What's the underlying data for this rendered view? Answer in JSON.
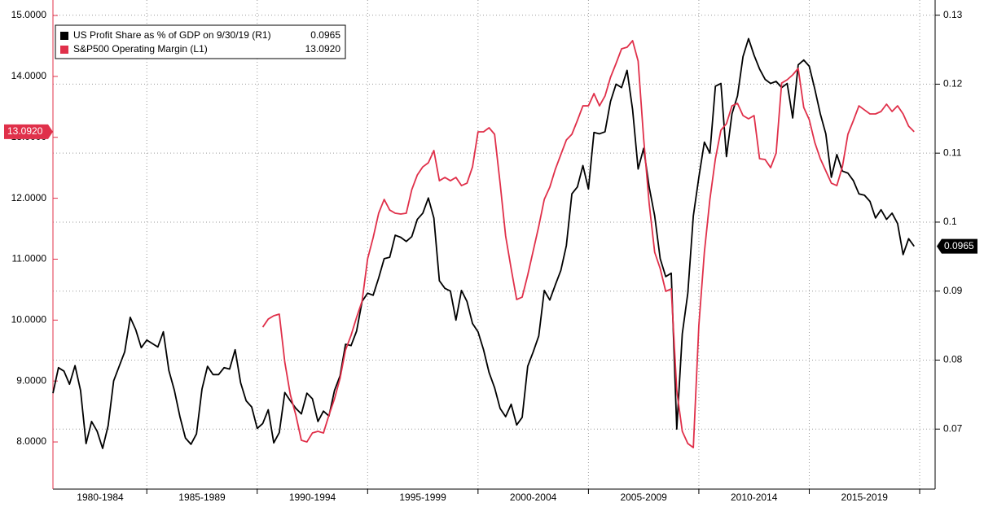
{
  "chart_data": {
    "type": "line",
    "x": [
      1980.75,
      1981,
      1981.25,
      1981.5,
      1981.75,
      1982,
      1982.25,
      1982.5,
      1982.75,
      1983,
      1983.25,
      1983.5,
      1983.75,
      1984,
      1984.25,
      1984.5,
      1984.75,
      1985,
      1985.25,
      1985.5,
      1985.75,
      1986,
      1986.25,
      1986.5,
      1986.75,
      1987,
      1987.25,
      1987.5,
      1987.75,
      1988,
      1988.25,
      1988.5,
      1988.75,
      1989,
      1989.25,
      1989.5,
      1989.75,
      1990,
      1990.25,
      1990.5,
      1990.75,
      1991,
      1991.25,
      1991.5,
      1991.75,
      1992,
      1992.25,
      1992.5,
      1992.75,
      1993,
      1993.25,
      1993.5,
      1993.75,
      1994,
      1994.25,
      1994.5,
      1994.75,
      1995,
      1995.25,
      1995.5,
      1995.75,
      1996,
      1996.25,
      1996.5,
      1996.75,
      1997,
      1997.25,
      1997.5,
      1997.75,
      1998,
      1998.25,
      1998.5,
      1998.75,
      1999,
      1999.25,
      1999.5,
      1999.75,
      2000,
      2000.25,
      2000.5,
      2000.75,
      2001,
      2001.25,
      2001.5,
      2001.75,
      2002,
      2002.25,
      2002.5,
      2002.75,
      2003,
      2003.25,
      2003.5,
      2003.75,
      2004,
      2004.25,
      2004.5,
      2004.75,
      2005,
      2005.25,
      2005.5,
      2005.75,
      2006,
      2006.25,
      2006.5,
      2006.75,
      2007,
      2007.25,
      2007.5,
      2007.75,
      2008,
      2008.25,
      2008.5,
      2008.75,
      2009,
      2009.25,
      2009.5,
      2009.75,
      2010,
      2010.25,
      2010.5,
      2010.75,
      2011,
      2011.25,
      2011.5,
      2011.75,
      2012,
      2012.25,
      2012.5,
      2012.75,
      2013,
      2013.25,
      2013.5,
      2013.75,
      2014,
      2014.25,
      2014.5,
      2014.75,
      2015,
      2015.25,
      2015.5,
      2015.75,
      2016,
      2016.25,
      2016.5,
      2016.75,
      2017,
      2017.25,
      2017.5,
      2017.75,
      2018,
      2018.25,
      2018.5,
      2018.75,
      2019,
      2019.25,
      2019.5,
      2019.75
    ],
    "series": [
      {
        "name": "US Profit Share as % of GDP on 9/30/19 (R1)",
        "color": "#000000",
        "axis": "y2",
        "last_value_label": "0.0965",
        "values": [
          0.0752,
          0.0789,
          0.0784,
          0.0765,
          0.0792,
          0.0756,
          0.0679,
          0.0711,
          0.0697,
          0.0672,
          0.0705,
          0.077,
          0.0791,
          0.0812,
          0.0862,
          0.0844,
          0.0818,
          0.0829,
          0.0824,
          0.0819,
          0.0841,
          0.0785,
          0.0756,
          0.0718,
          0.0687,
          0.0678,
          0.0693,
          0.0758,
          0.0791,
          0.0779,
          0.0779,
          0.0789,
          0.0787,
          0.0815,
          0.0767,
          0.0741,
          0.0732,
          0.0701,
          0.0708,
          0.0728,
          0.068,
          0.0695,
          0.0753,
          0.0741,
          0.073,
          0.0722,
          0.0752,
          0.0744,
          0.0711,
          0.0726,
          0.0719,
          0.0756,
          0.0777,
          0.0823,
          0.0821,
          0.0842,
          0.0885,
          0.0897,
          0.0894,
          0.0919,
          0.0947,
          0.0949,
          0.0981,
          0.0978,
          0.0972,
          0.0979,
          0.1004,
          0.1013,
          0.1035,
          0.1006,
          0.0915,
          0.0904,
          0.09,
          0.0858,
          0.0901,
          0.0885,
          0.0853,
          0.0841,
          0.0815,
          0.0782,
          0.076,
          0.073,
          0.0718,
          0.0736,
          0.0706,
          0.0717,
          0.0791,
          0.0812,
          0.0835,
          0.0901,
          0.0887,
          0.0909,
          0.093,
          0.0966,
          0.1041,
          0.1051,
          0.1082,
          0.1048,
          0.113,
          0.1128,
          0.1131,
          0.1175,
          0.12,
          0.1195,
          0.122,
          0.1163,
          0.1077,
          0.1107,
          0.1051,
          0.1009,
          0.0947,
          0.0921,
          0.0926,
          0.07,
          0.0838,
          0.0897,
          0.1009,
          0.1065,
          0.1116,
          0.11,
          0.1197,
          0.1201,
          0.1095,
          0.1157,
          0.1183,
          0.124,
          0.1266,
          0.1242,
          0.1222,
          0.1207,
          0.1201,
          0.1204,
          0.1195,
          0.1201,
          0.1151,
          0.1228,
          0.1235,
          0.1226,
          0.1193,
          0.1157,
          0.1128,
          0.1065,
          0.1098,
          0.1074,
          0.1071,
          0.106,
          0.1041,
          0.1039,
          0.103,
          0.1006,
          0.1018,
          0.1004,
          0.1013,
          0.0998,
          0.0953,
          0.0976,
          0.0965
        ]
      },
      {
        "name": "S&P500 Operating Margin (L1)",
        "color": "#e0304a",
        "axis": "y",
        "last_value_label": "13.0920",
        "values": [
          null,
          null,
          null,
          null,
          null,
          null,
          null,
          null,
          null,
          null,
          null,
          null,
          null,
          null,
          null,
          null,
          null,
          null,
          null,
          null,
          null,
          null,
          null,
          null,
          null,
          null,
          null,
          null,
          null,
          null,
          null,
          null,
          null,
          null,
          null,
          null,
          null,
          null,
          9.884,
          10.017,
          10.071,
          10.098,
          9.309,
          8.775,
          8.441,
          8.027,
          8.0,
          8.147,
          8.174,
          8.147,
          8.441,
          8.708,
          9.042,
          9.51,
          9.75,
          10.044,
          10.311,
          11.006,
          11.353,
          11.754,
          11.981,
          11.807,
          11.754,
          11.741,
          11.754,
          12.141,
          12.382,
          12.515,
          12.582,
          12.783,
          12.288,
          12.342,
          12.288,
          12.342,
          12.208,
          12.248,
          12.515,
          13.09,
          13.09,
          13.157,
          13.05,
          12.248,
          11.38,
          10.846,
          10.338,
          10.378,
          10.739,
          11.139,
          11.54,
          11.981,
          12.181,
          12.475,
          12.716,
          12.956,
          13.05,
          13.277,
          13.517,
          13.517,
          13.718,
          13.517,
          13.678,
          13.985,
          14.212,
          14.452,
          14.479,
          14.586,
          14.252,
          12.983,
          11.914,
          11.113,
          10.846,
          10.472,
          10.512,
          8.842,
          8.174,
          7.974,
          7.907,
          9.911,
          11.113,
          11.981,
          12.649,
          13.117,
          13.223,
          13.517,
          13.557,
          13.357,
          13.304,
          13.357,
          12.649,
          12.636,
          12.502,
          12.742,
          13.891,
          13.945,
          14.025,
          14.132,
          13.491,
          13.29,
          12.916,
          12.649,
          12.449,
          12.248,
          12.208,
          12.515,
          13.05,
          13.277,
          13.517,
          13.45,
          13.384,
          13.384,
          13.424,
          13.544,
          13.424,
          13.517,
          13.384,
          13.183,
          13.092
        ]
      }
    ],
    "xlim": [
      1980.75,
      2020.7
    ],
    "xticks": [
      {
        "value": 1982.5,
        "label": "1980-1984"
      },
      {
        "value": 1987.5,
        "label": "1985-1989"
      },
      {
        "value": 1992.5,
        "label": "1990-1994"
      },
      {
        "value": 1997.5,
        "label": "1995-1999"
      },
      {
        "value": 2002.5,
        "label": "2000-2004"
      },
      {
        "value": 2007.5,
        "label": "2005-2009"
      },
      {
        "value": 2012.5,
        "label": "2010-2014"
      },
      {
        "value": 2017.5,
        "label": "2015-2019"
      }
    ],
    "ylim": [
      7.226,
      15.254
    ],
    "yticks": [
      {
        "value": 8,
        "label": "8.0000"
      },
      {
        "value": 9,
        "label": "9.0000"
      },
      {
        "value": 10,
        "label": "10.0000"
      },
      {
        "value": 11,
        "label": "11.0000"
      },
      {
        "value": 12,
        "label": "12.0000"
      },
      {
        "value": 13,
        "label": "13.0000"
      },
      {
        "value": 14,
        "label": "14.0000"
      },
      {
        "value": 15,
        "label": "15.0000"
      }
    ],
    "y2lim": [
      0.0613,
      0.1322
    ],
    "y2ticks": [
      0.07,
      0.08,
      0.09,
      0.1,
      0.11,
      0.12,
      0.13
    ],
    "grid": true,
    "legend_position": "upper left"
  }
}
